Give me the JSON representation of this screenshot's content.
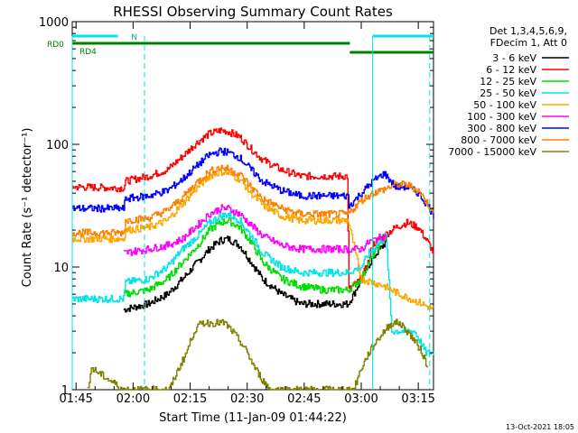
{
  "chart_data": {
    "type": "line",
    "title": "RHESSI Observing Summary Count Rates",
    "xlabel": "Start Time (11-Jan-09 01:44:22)",
    "ylabel": "Count Rate (s⁻¹ detector⁻¹)",
    "y_log": true,
    "ylim": [
      1,
      1000
    ],
    "xlim_minutes": [
      0,
      95
    ],
    "x_ticks": [
      {
        "m": 1,
        "label": "01:45"
      },
      {
        "m": 16,
        "label": "02:00"
      },
      {
        "m": 31,
        "label": "02:15"
      },
      {
        "m": 46,
        "label": "02:30"
      },
      {
        "m": 61,
        "label": "02:45"
      },
      {
        "m": 76,
        "label": "03:00"
      },
      {
        "m": 91,
        "label": "03:15"
      }
    ],
    "y_ticks": [
      {
        "v": 1,
        "label": "1"
      },
      {
        "v": 10,
        "label": "10"
      },
      {
        "v": 100,
        "label": "100"
      },
      {
        "v": 1000,
        "label": "1000"
      }
    ],
    "legend": {
      "position": "right",
      "header": [
        "Det 1,3,4,5,6,9,",
        "FDecim 1, Att 0"
      ]
    },
    "series": [
      {
        "name": "3 - 6 keV",
        "color": "#000000",
        "x": [
          13.5,
          20,
          25,
          29,
          33,
          36,
          39,
          41,
          44,
          47,
          50,
          55,
          60,
          66,
          70,
          72.5,
          74,
          76,
          78,
          80,
          82.5
        ],
        "y": [
          4.5,
          5,
          6,
          8,
          11,
          14,
          16.5,
          17,
          15,
          11,
          8,
          6,
          5,
          5,
          5,
          5,
          6,
          8,
          10.5,
          13,
          16
        ]
      },
      {
        "name": "6 - 12 keV",
        "color": "#ff0000",
        "x": [
          0,
          13.5,
          14,
          20,
          25,
          29,
          33,
          36,
          39,
          41,
          44,
          47,
          50,
          55,
          60,
          66,
          70,
          72.4,
          72.6,
          76,
          78.3,
          78.7,
          82,
          85,
          88,
          91,
          94,
          95
        ],
        "y": [
          45,
          44,
          50,
          55,
          62,
          80,
          105,
          122,
          130,
          127,
          115,
          92,
          75,
          62,
          55,
          55,
          55,
          55,
          6.5,
          8,
          12,
          15,
          18,
          21,
          23,
          21,
          15,
          13
        ]
      },
      {
        "name": "12 - 25 keV",
        "color": "#00dd00",
        "x": [
          13.5,
          20,
          25,
          29,
          33,
          36,
          39,
          41,
          44,
          47,
          50,
          55,
          60,
          66,
          70,
          72.5,
          76,
          78,
          80,
          82.5
        ],
        "y": [
          6,
          6.5,
          8,
          11,
          15,
          20,
          23,
          24,
          21,
          16,
          11,
          8,
          7,
          6.5,
          6.5,
          6.5,
          8,
          11,
          14,
          18
        ]
      },
      {
        "name": "25 - 50 keV",
        "color": "#00e5e5",
        "x": [
          0,
          13.5,
          14,
          20,
          25,
          29,
          33,
          36,
          39,
          41,
          44,
          47,
          50,
          55,
          60,
          66,
          70,
          72.5,
          76,
          78,
          80,
          82.5,
          84,
          86,
          90,
          93,
          95
        ],
        "y": [
          5.5,
          5.5,
          7.5,
          8,
          10,
          14,
          18,
          23,
          26,
          27,
          24,
          18,
          13,
          10,
          9,
          9,
          9,
          9,
          10,
          13,
          15,
          18,
          3,
          3,
          3,
          2,
          2
        ]
      },
      {
        "name": "50 - 100 keV",
        "color": "#ffa500",
        "x": [
          0,
          13.5,
          14,
          20,
          25,
          29,
          33,
          36,
          39,
          41,
          44,
          47,
          50,
          55,
          60,
          66,
          70,
          72.5,
          76,
          79,
          82,
          86,
          89,
          92,
          95
        ],
        "y": [
          17,
          17,
          20,
          21,
          24,
          33,
          45,
          55,
          60,
          58,
          52,
          40,
          32,
          26,
          24,
          24,
          24,
          24,
          8,
          7.5,
          7,
          6,
          5.5,
          5,
          4.5
        ]
      },
      {
        "name": "100 - 300 keV",
        "color": "#ff00ff",
        "x": [
          13.5,
          20,
          25,
          29,
          33,
          36,
          39,
          41,
          44,
          47,
          50,
          55,
          60,
          66,
          70,
          72.5,
          76,
          78,
          80,
          82.5
        ],
        "y": [
          13,
          14,
          15,
          17,
          22,
          27,
          30,
          30,
          27,
          22,
          18,
          15,
          14,
          14,
          14,
          14,
          14,
          16,
          17,
          18
        ]
      },
      {
        "name": "300 - 800 keV",
        "color": "#0000ff",
        "x": [
          0,
          13.5,
          14,
          20,
          25,
          29,
          33,
          36,
          39,
          41,
          44,
          47,
          50,
          55,
          60,
          66,
          70,
          72.5,
          72.6,
          76,
          79,
          82,
          85,
          88,
          91,
          94,
          95
        ],
        "y": [
          30,
          30,
          36,
          38,
          42,
          52,
          68,
          82,
          88,
          86,
          78,
          62,
          50,
          42,
          38,
          38,
          38,
          38,
          31,
          40,
          50,
          58,
          45,
          45,
          40,
          30,
          26
        ]
      },
      {
        "name": "800 - 7000 keV",
        "color": "#ff8000",
        "x": [
          0,
          13.5,
          14,
          20,
          25,
          29,
          33,
          36,
          39,
          41,
          44,
          47,
          50,
          55,
          60,
          66,
          70,
          72.5,
          76,
          79,
          82,
          85,
          88,
          91,
          94,
          95
        ],
        "y": [
          19,
          19,
          24,
          25,
          29,
          37,
          50,
          60,
          65,
          63,
          57,
          45,
          36,
          30,
          27,
          27,
          27,
          27,
          35,
          40,
          43,
          47,
          47,
          42,
          31,
          27
        ]
      },
      {
        "name": "7000 - 15000 keV",
        "color": "#808000",
        "x": [
          4,
          5,
          13.5,
          20,
          23,
          25.5,
          28,
          30,
          32,
          34,
          36,
          38,
          40,
          42,
          44,
          46,
          48,
          50,
          52,
          55,
          66,
          70,
          72.5,
          74,
          76,
          78,
          80,
          82,
          84,
          86,
          88,
          90,
          92,
          93.5
        ],
        "y": [
          1,
          1.5,
          1,
          1,
          1,
          1,
          1.5,
          2,
          3,
          3.5,
          3.5,
          3.5,
          3.5,
          3,
          2.5,
          2,
          1.5,
          1.2,
          1,
          1,
          1,
          1,
          1,
          1,
          1.5,
          2,
          2.5,
          3,
          3.5,
          3.5,
          3,
          2.5,
          2,
          1.5
        ]
      }
    ],
    "annotations": {
      "rd0_label": "RD0",
      "rd4_label": "RD4",
      "n_label": "N",
      "cyan_bars": [
        [
          0,
          12
        ],
        [
          79,
          95
        ]
      ],
      "rd0_bar_range": [
        0,
        73
      ],
      "rd4_bar_range": [
        73,
        95
      ],
      "cyan_dashed_markers": [
        19,
        94
      ],
      "cyan_solid_markers": [
        0,
        79
      ]
    },
    "footer_date": "13-Oct-2021 18:05"
  }
}
